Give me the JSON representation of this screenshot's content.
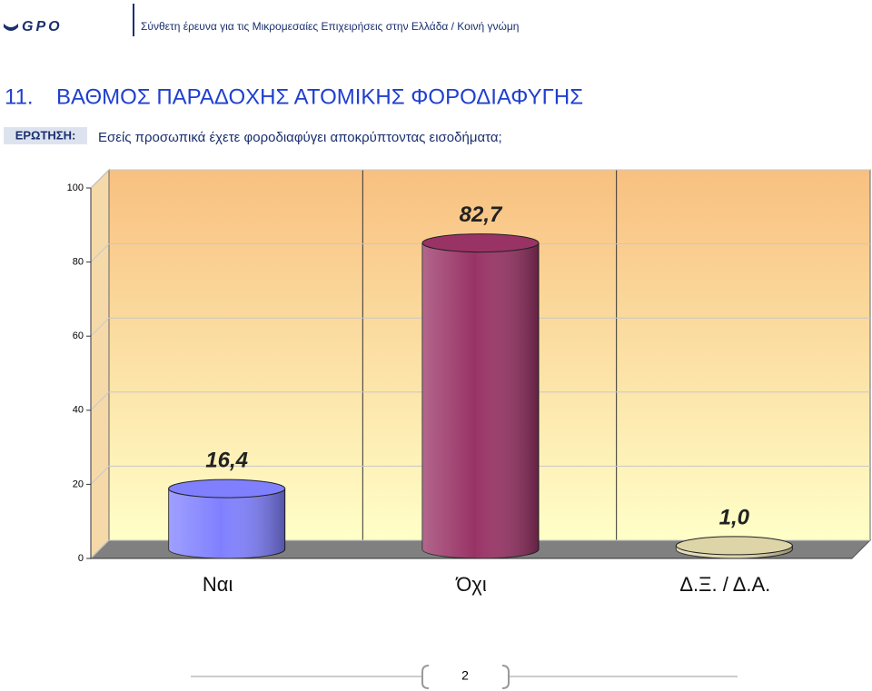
{
  "header": {
    "logo": "GPO",
    "text": "Σύνθετη έρευνα για τις Μικρομεσαίες Επιχειρήσεις στην Ελλάδα  / Κοινή γνώμη"
  },
  "title": {
    "number": "11.",
    "text": "ΒΑΘΜΟΣ ΠΑΡΑΔΟΧΗΣ ΑΤΟΜΙΚΗΣ ΦΟΡΟΔΙΑΦΥΓΗΣ"
  },
  "question": {
    "label": "ΕΡΩΤΗΣΗ:",
    "text": "Εσείς προσωπικά έχετε φοροδιαφύγει αποκρύπτοντας εισοδήματα;"
  },
  "chart_data": {
    "type": "bar",
    "categories": [
      "Ναι",
      "Όχι",
      "Δ.Ξ. / Δ.Α."
    ],
    "values": [
      16.4,
      82.7,
      1.0
    ],
    "value_labels": [
      "16,4",
      "82,7",
      "1,0"
    ],
    "colors": [
      "#8080ff",
      "#993366",
      "#ddd5a8"
    ],
    "ylim": [
      0,
      100
    ],
    "yticks": [
      0,
      20,
      40,
      60,
      80,
      100
    ],
    "grid": true
  },
  "footer": {
    "page": "2"
  }
}
